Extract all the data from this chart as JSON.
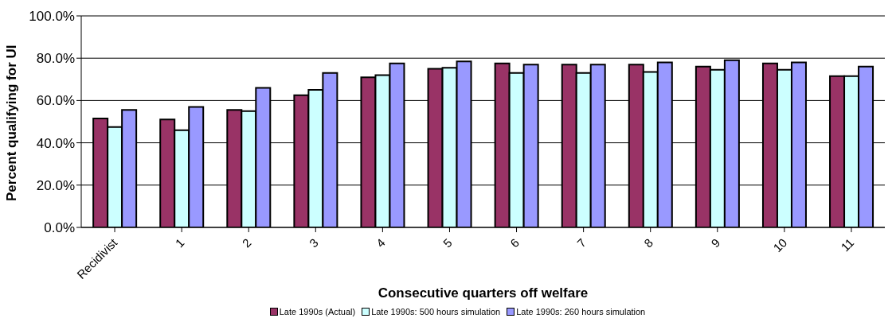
{
  "chart_data": {
    "type": "bar",
    "xlabel": "Consecutive quarters off welfare",
    "ylabel": "Percent qualifying for UI",
    "categories": [
      "Recidivist",
      "1",
      "2",
      "3",
      "4",
      "5",
      "6",
      "7",
      "8",
      "9",
      "10",
      "11"
    ],
    "series": [
      {
        "name": "Late 1990s (Actual)",
        "color": "#993366",
        "values": [
          51.5,
          51,
          55.5,
          62.5,
          71,
          75,
          77.5,
          77,
          77,
          76,
          77.5,
          71.5
        ]
      },
      {
        "name": "Late 1990s: 500 hours simulation",
        "color": "#ccffff",
        "values": [
          47.5,
          46,
          55,
          65,
          72,
          75.5,
          73,
          73,
          73.5,
          74.5,
          74.5,
          71.5
        ]
      },
      {
        "name": "Late 1990s: 260 hours simulation",
        "color": "#9999ff",
        "values": [
          55.5,
          57,
          66,
          73,
          77.5,
          78.5,
          77,
          77,
          78,
          79,
          78,
          76
        ]
      }
    ],
    "ylim": [
      0,
      100
    ],
    "yticks": [
      {
        "value": 0,
        "label": "0.0%"
      },
      {
        "value": 20,
        "label": "20.0%"
      },
      {
        "value": 40,
        "label": "40.0%"
      },
      {
        "value": 60,
        "label": "60.0%"
      },
      {
        "value": 80,
        "label": "80.0%"
      },
      {
        "value": 100,
        "label": "100.0%"
      }
    ],
    "grid": "y",
    "legend": "bottom"
  }
}
